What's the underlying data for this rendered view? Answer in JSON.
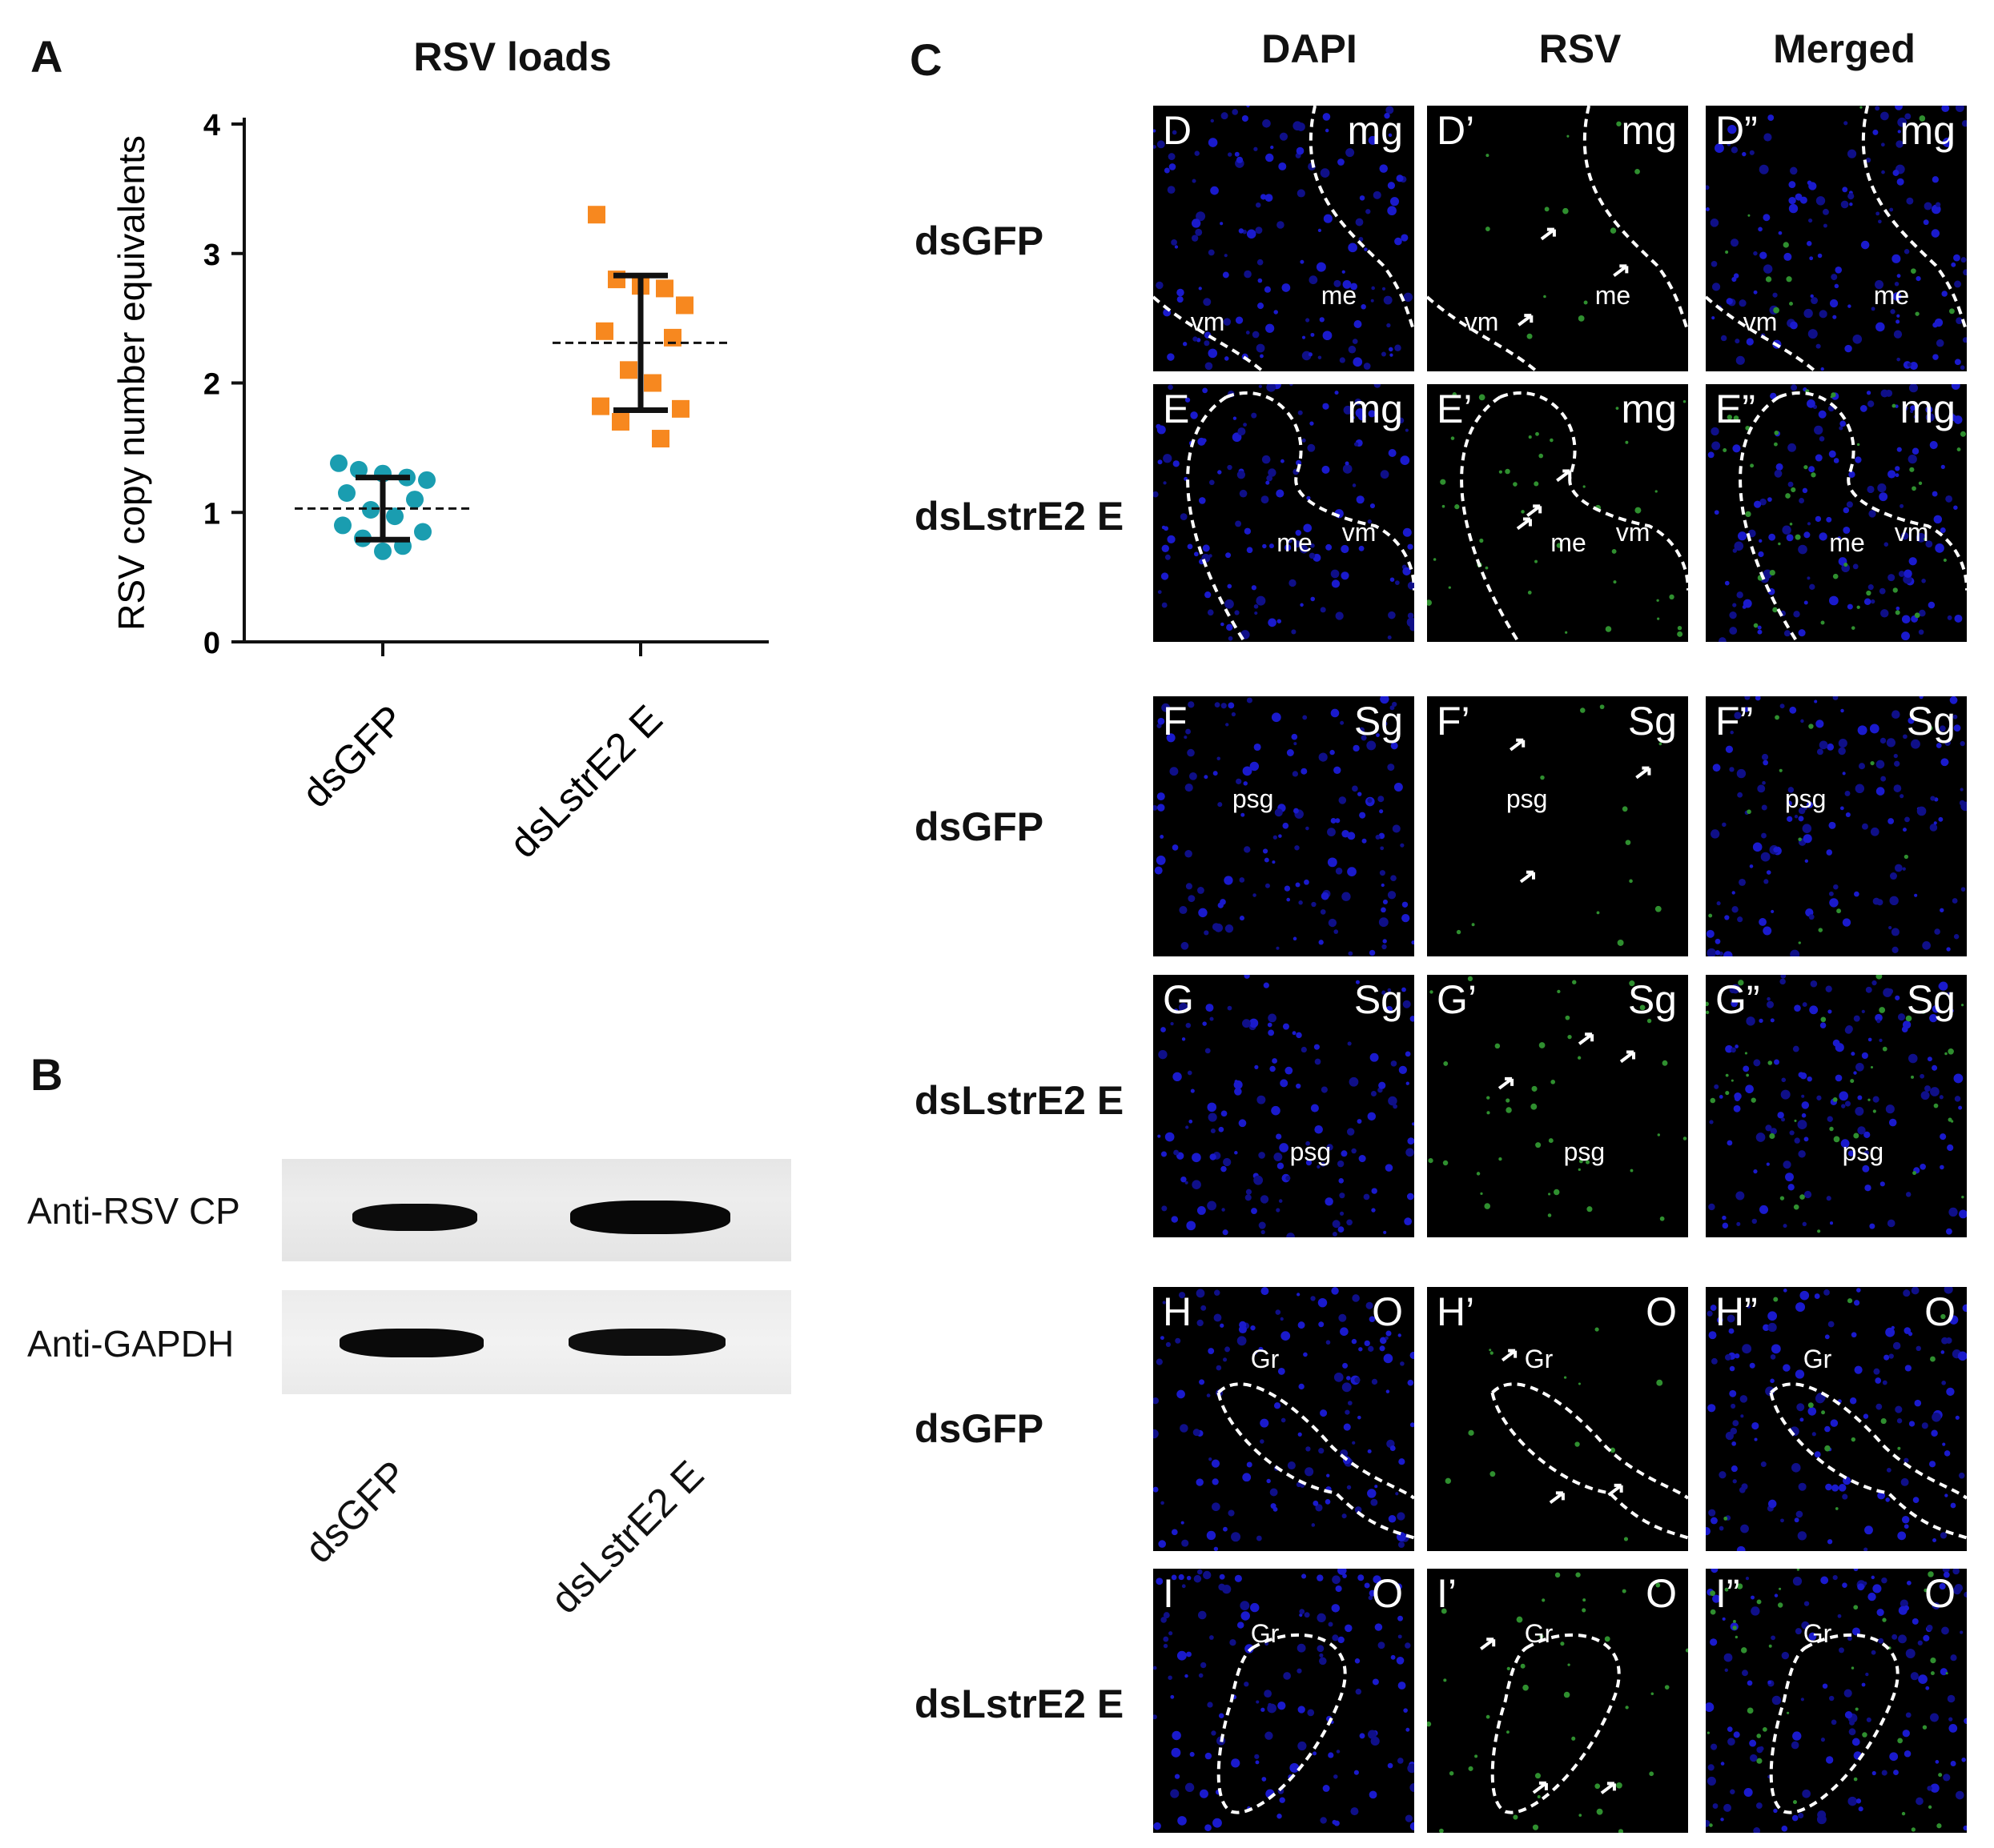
{
  "panel_a": {
    "letter": "A",
    "chart_data": {
      "type": "scatter",
      "title": "RSV loads",
      "xlabel": "",
      "ylabel": "RSV copy number equivalents",
      "categories": [
        "dsGFP",
        "dsLstrE2 E"
      ],
      "ylim": [
        0,
        4
      ],
      "yticks": [
        "0",
        "1",
        "2",
        "3",
        "4"
      ],
      "series": [
        {
          "values": [
            1.38,
            1.33,
            1.3,
            1.27,
            1.25,
            1.15,
            1.1,
            1.02,
            0.97,
            0.9,
            0.85,
            0.8,
            0.74,
            0.7
          ],
          "mean": 1.03,
          "sd_low": 0.79,
          "sd_high": 1.27,
          "marker": "circle",
          "color": "#1a9db0"
        },
        {
          "values": [
            3.3,
            2.8,
            2.75,
            2.73,
            2.6,
            2.4,
            2.35,
            2.1,
            2.0,
            1.82,
            1.8,
            1.7,
            1.57
          ],
          "mean": 2.31,
          "sd_low": 1.79,
          "sd_high": 2.83,
          "marker": "square",
          "color": "#f7881f"
        }
      ]
    }
  },
  "panel_b": {
    "letter": "B",
    "rows": [
      "Anti-RSV CP",
      "Anti-GAPDH"
    ],
    "lanes": [
      "dsGFP",
      "dsLstrE2 E"
    ]
  },
  "panel_c": {
    "letter": "C",
    "columns": [
      "DAPI",
      "RSV",
      "Merged"
    ],
    "rows": [
      {
        "label": "dsGFP",
        "tissue": "mg",
        "panels": [
          "D",
          "D’",
          "D”"
        ],
        "marks": [
          "me",
          "vm"
        ]
      },
      {
        "label": "dsLstrE2 E",
        "tissue": "mg",
        "panels": [
          "E",
          "E’",
          "E”"
        ],
        "marks": [
          "me",
          "vm"
        ]
      },
      {
        "label": "dsGFP",
        "tissue": "Sg",
        "panels": [
          "F",
          "F’",
          "F”"
        ],
        "marks": [
          "psg"
        ]
      },
      {
        "label": "dsLstrE2 E",
        "tissue": "Sg",
        "panels": [
          "G",
          "G’",
          "G”"
        ],
        "marks": [
          "psg"
        ]
      },
      {
        "label": "dsGFP",
        "tissue": "O",
        "panels": [
          "H",
          "H’",
          "H”"
        ],
        "marks": [
          "Gr"
        ]
      },
      {
        "label": "dsLstrE2 E",
        "tissue": "O",
        "panels": [
          "I",
          "I’",
          "I”"
        ],
        "marks": [
          "Gr"
        ]
      }
    ]
  }
}
